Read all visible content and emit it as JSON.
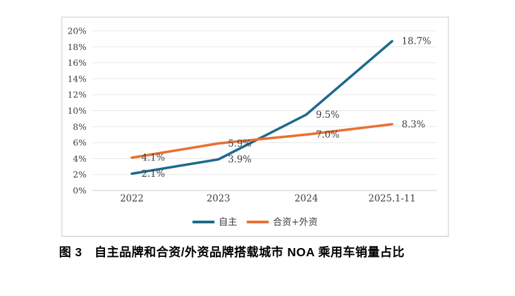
{
  "caption": "图 3　自主品牌和合资/外资品牌搭载城市 NOA 乘用车销量占比",
  "colors": {
    "series_blue": "#1e6a8c",
    "series_orange": "#e97132",
    "gridline": "#e7e7e7",
    "baseline": "#cbcbcb",
    "axis_text": "#3a3d46"
  },
  "chart_data": {
    "type": "line",
    "categories": [
      "2022",
      "2023",
      "2024",
      "2025.1-11"
    ],
    "series": [
      {
        "name": "自主",
        "color": "#1e6a8c",
        "values": [
          2.1,
          3.9,
          9.5,
          18.7
        ],
        "labels": [
          "2.1%",
          "3.9%",
          "9.5%",
          "18.7%"
        ]
      },
      {
        "name": "合资+外资",
        "color": "#e97132",
        "values": [
          4.1,
          5.9,
          7.0,
          8.3
        ],
        "labels": [
          "4.1%",
          "5.9%",
          "7.0%",
          "8.3%"
        ]
      }
    ],
    "title": "",
    "xlabel": "",
    "ylabel": "",
    "ylim": [
      0,
      20
    ],
    "ytick_step": 2,
    "ytick_suffix": "%",
    "grid": true,
    "legend_position": "bottom"
  }
}
